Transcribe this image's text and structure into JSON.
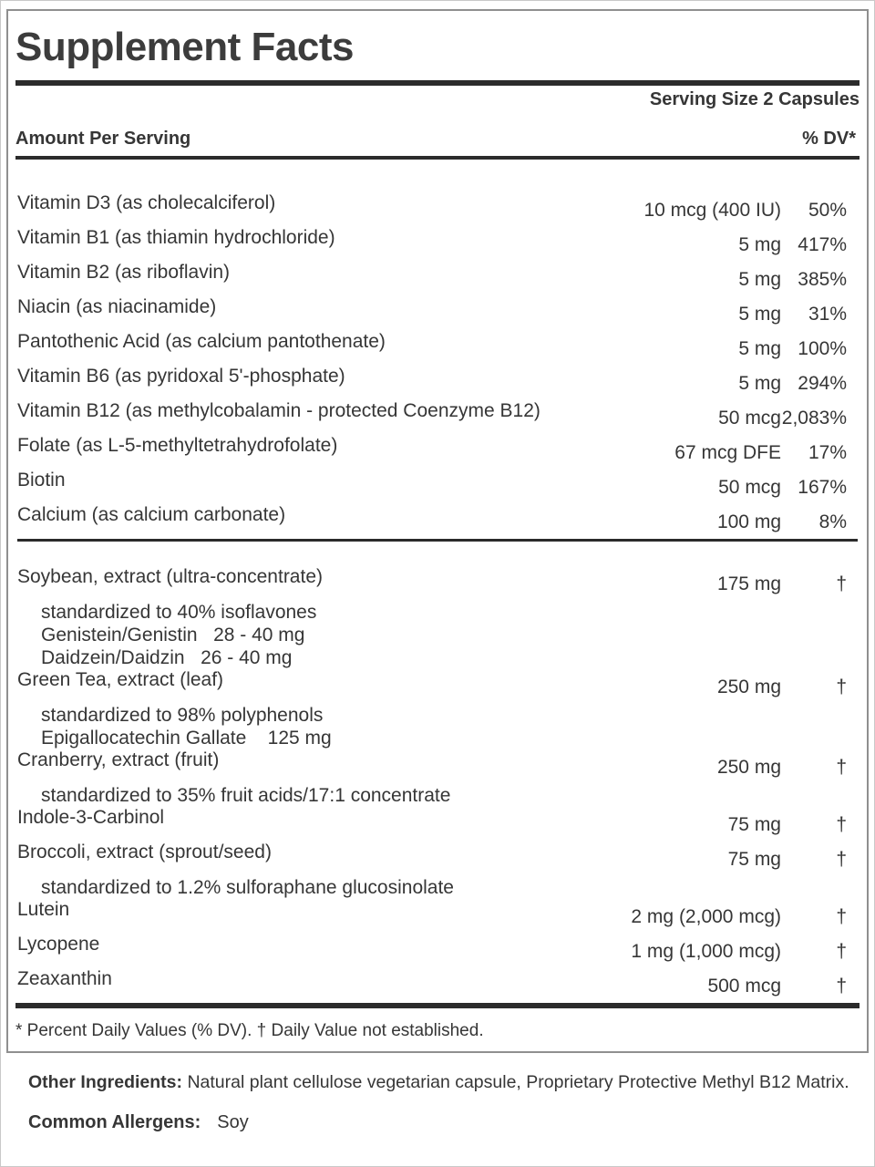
{
  "panel": {
    "title": "Supplement Facts",
    "serving_size": "Serving Size 2 Capsules",
    "header": {
      "amount_label": "Amount Per Serving",
      "dv_label": "% DV*"
    },
    "vitamin_rows": [
      {
        "name": "Vitamin D3 (as cholecalciferol)",
        "amount": "10 mcg (400 IU)",
        "dv": "50%"
      },
      {
        "name": "Vitamin B1 (as thiamin hydrochloride)",
        "amount": "5 mg",
        "dv": "417%"
      },
      {
        "name": "Vitamin B2 (as riboflavin)",
        "amount": "5 mg",
        "dv": "385%"
      },
      {
        "name": "Niacin (as niacinamide)",
        "amount": "5 mg",
        "dv": "31%"
      },
      {
        "name": "Pantothenic Acid (as calcium pantothenate)",
        "amount": "5 mg",
        "dv": "100%"
      },
      {
        "name": "Vitamin B6 (as pyridoxal 5'-phosphate)",
        "amount": "5 mg",
        "dv": "294%"
      },
      {
        "name": "Vitamin B12 (as methylcobalamin - protected Coenzyme B12)",
        "amount": "50 mcg",
        "dv": "2,083%"
      },
      {
        "name": "Folate (as L-5-methyltetrahydrofolate)",
        "amount": "67 mcg DFE",
        "dv": "17%"
      },
      {
        "name": "Biotin",
        "amount": "50 mcg",
        "dv": "167%"
      },
      {
        "name": "Calcium (as calcium carbonate)",
        "amount": "100 mg",
        "dv": "8%"
      }
    ],
    "botanical_rows": [
      {
        "name": "Soybean, extract (ultra-concentrate)",
        "amount": "175 mg",
        "dv": "†",
        "subs": [
          "standardized to 40% isoflavones",
          "Genistein/Genistin   28 - 40 mg",
          "Daidzein/Daidzin   26 - 40 mg"
        ]
      },
      {
        "name": "Green Tea, extract (leaf)",
        "amount": "250 mg",
        "dv": "†",
        "subs": [
          "standardized to 98% polyphenols",
          "Epigallocatechin Gallate    125 mg"
        ]
      },
      {
        "name": "Cranberry, extract (fruit)",
        "amount": "250 mg",
        "dv": "†",
        "subs": [
          "standardized to 35% fruit acids/17:1 concentrate"
        ]
      },
      {
        "name": "Indole-3-Carbinol",
        "amount": "75 mg",
        "dv": "†"
      },
      {
        "name": "Broccoli, extract (sprout/seed)",
        "amount": "75 mg",
        "dv": "†",
        "subs": [
          "standardized to 1.2% sulforaphane glucosinolate"
        ]
      },
      {
        "name": "Lutein",
        "amount": "2 mg (2,000 mcg)",
        "dv": "†"
      },
      {
        "name": "Lycopene",
        "amount": "1 mg (1,000 mcg)",
        "dv": "†"
      },
      {
        "name": "Zeaxanthin",
        "amount": "500 mcg",
        "dv": "†"
      }
    ],
    "footnote": "* Percent Daily Values (% DV). † Daily Value not established."
  },
  "other_ingredients": {
    "label": "Other Ingredients:",
    "text": " Natural plant cellulose vegetarian capsule, Proprietary Protective Methyl B12 Matrix."
  },
  "allergens": {
    "label": "Common Allergens:",
    "value": "Soy"
  },
  "colors": {
    "text": "#363636",
    "rule": "#2b2b2b",
    "panel_border": "#8f8f8f"
  }
}
